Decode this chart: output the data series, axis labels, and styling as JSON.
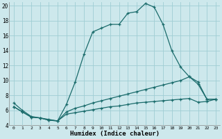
{
  "xlabel": "Humidex (Indice chaleur)",
  "bg_color": "#cde8ec",
  "grid_color": "#9fcdd4",
  "line_color": "#1a6b6b",
  "xlim": [
    -0.5,
    23.5
  ],
  "ylim": [
    4,
    20.5
  ],
  "yticks": [
    4,
    6,
    8,
    10,
    12,
    14,
    16,
    18,
    20
  ],
  "xticks": [
    0,
    1,
    2,
    3,
    4,
    5,
    6,
    7,
    8,
    9,
    10,
    11,
    12,
    13,
    14,
    15,
    16,
    17,
    18,
    19,
    20,
    21,
    22,
    23
  ],
  "line1_x": [
    0,
    1,
    2,
    3,
    4,
    5,
    6,
    7,
    8,
    9,
    10,
    11,
    12,
    13,
    14,
    15,
    16,
    17,
    18,
    19,
    20,
    21,
    22,
    23
  ],
  "line1_y": [
    7.0,
    6.0,
    5.2,
    5.0,
    4.8,
    4.6,
    6.8,
    9.8,
    13.5,
    16.5,
    17.0,
    17.5,
    17.5,
    19.0,
    19.2,
    20.3,
    19.8,
    17.5,
    14.0,
    11.8,
    10.5,
    9.8,
    7.5,
    7.5
  ],
  "line2_x": [
    0,
    1,
    2,
    3,
    4,
    5,
    6,
    7,
    8,
    9,
    10,
    11,
    12,
    13,
    14,
    15,
    16,
    17,
    18,
    19,
    20,
    21,
    22,
    23
  ],
  "line2_y": [
    6.5,
    5.8,
    5.1,
    5.0,
    4.7,
    4.6,
    5.8,
    6.3,
    6.6,
    7.0,
    7.3,
    7.6,
    7.9,
    8.2,
    8.5,
    8.8,
    9.1,
    9.4,
    9.7,
    10.0,
    10.5,
    9.5,
    7.5,
    7.5
  ],
  "line3_x": [
    0,
    1,
    2,
    3,
    4,
    5,
    6,
    7,
    8,
    9,
    10,
    11,
    12,
    13,
    14,
    15,
    16,
    17,
    18,
    19,
    20,
    21,
    22,
    23
  ],
  "line3_y": [
    6.5,
    5.8,
    5.1,
    5.0,
    4.7,
    4.6,
    5.5,
    5.7,
    5.9,
    6.1,
    6.3,
    6.5,
    6.6,
    6.8,
    7.0,
    7.1,
    7.2,
    7.3,
    7.4,
    7.5,
    7.6,
    7.1,
    7.2,
    7.5
  ]
}
